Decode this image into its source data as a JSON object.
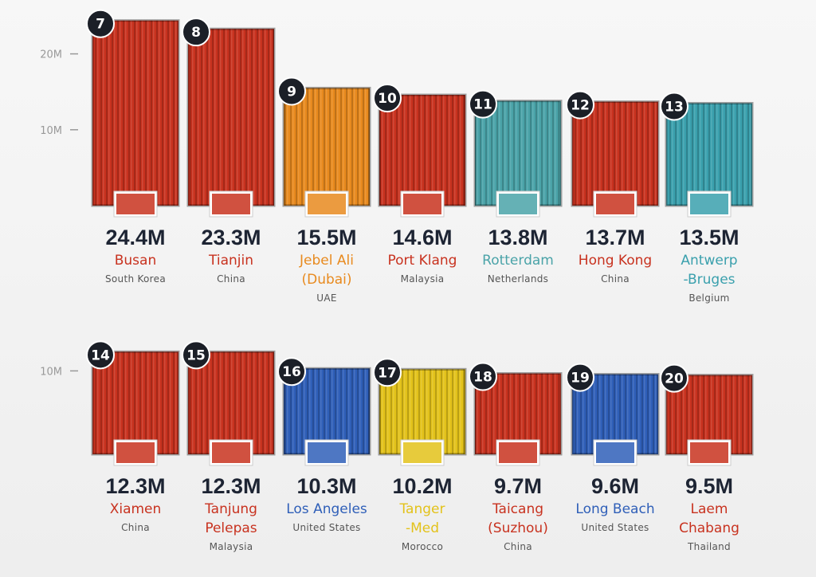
{
  "chart_data": [
    {
      "type": "bar",
      "ranks": [
        7,
        8,
        9,
        10,
        11,
        12,
        13
      ],
      "categories": [
        "Busan",
        "Tianjin",
        "Jebel Ali\n(Dubai)",
        "Port Klang",
        "Rotterdam",
        "Hong Kong",
        "Antwerp\n-Bruges"
      ],
      "countries": [
        "South Korea",
        "China",
        "UAE",
        "Malaysia",
        "Netherlands",
        "China",
        "Belgium"
      ],
      "values": [
        24.4,
        23.3,
        15.5,
        14.6,
        13.8,
        13.7,
        13.5
      ],
      "value_labels": [
        "24.4M",
        "23.3M",
        "15.5M",
        "14.6M",
        "13.8M",
        "13.7M",
        "13.5M"
      ],
      "colors": [
        "#c8321f",
        "#c8321f",
        "#e88a1e",
        "#c8321f",
        "#4aa3a8",
        "#c8321f",
        "#3aa0ad"
      ],
      "ylim": [
        0,
        25
      ],
      "yticks": [
        {
          "value": 10,
          "label": "10M"
        },
        {
          "value": 20,
          "label": "20M"
        }
      ]
    },
    {
      "type": "bar",
      "ranks": [
        14,
        15,
        16,
        17,
        18,
        19,
        20
      ],
      "categories": [
        "Xiamen",
        "Tanjung\nPelepas",
        "Los Angeles",
        "Tanger\n-Med",
        "Taicang\n(Suzhou)",
        "Long Beach",
        "Laem\nChabang"
      ],
      "countries": [
        "China",
        "Malaysia",
        "United States",
        "Morocco",
        "China",
        "United States",
        "Thailand"
      ],
      "values": [
        12.3,
        12.3,
        10.3,
        10.2,
        9.7,
        9.6,
        9.5
      ],
      "value_labels": [
        "12.3M",
        "12.3M",
        "10.3M",
        "10.2M",
        "9.7M",
        "9.6M",
        "9.5M"
      ],
      "colors": [
        "#c8321f",
        "#c8321f",
        "#2f5fb8",
        "#e3c21a",
        "#c8321f",
        "#2f5fb8",
        "#c8321f"
      ],
      "ylim": [
        0,
        13
      ],
      "yticks": [
        {
          "value": 10,
          "label": "10M"
        }
      ]
    }
  ]
}
